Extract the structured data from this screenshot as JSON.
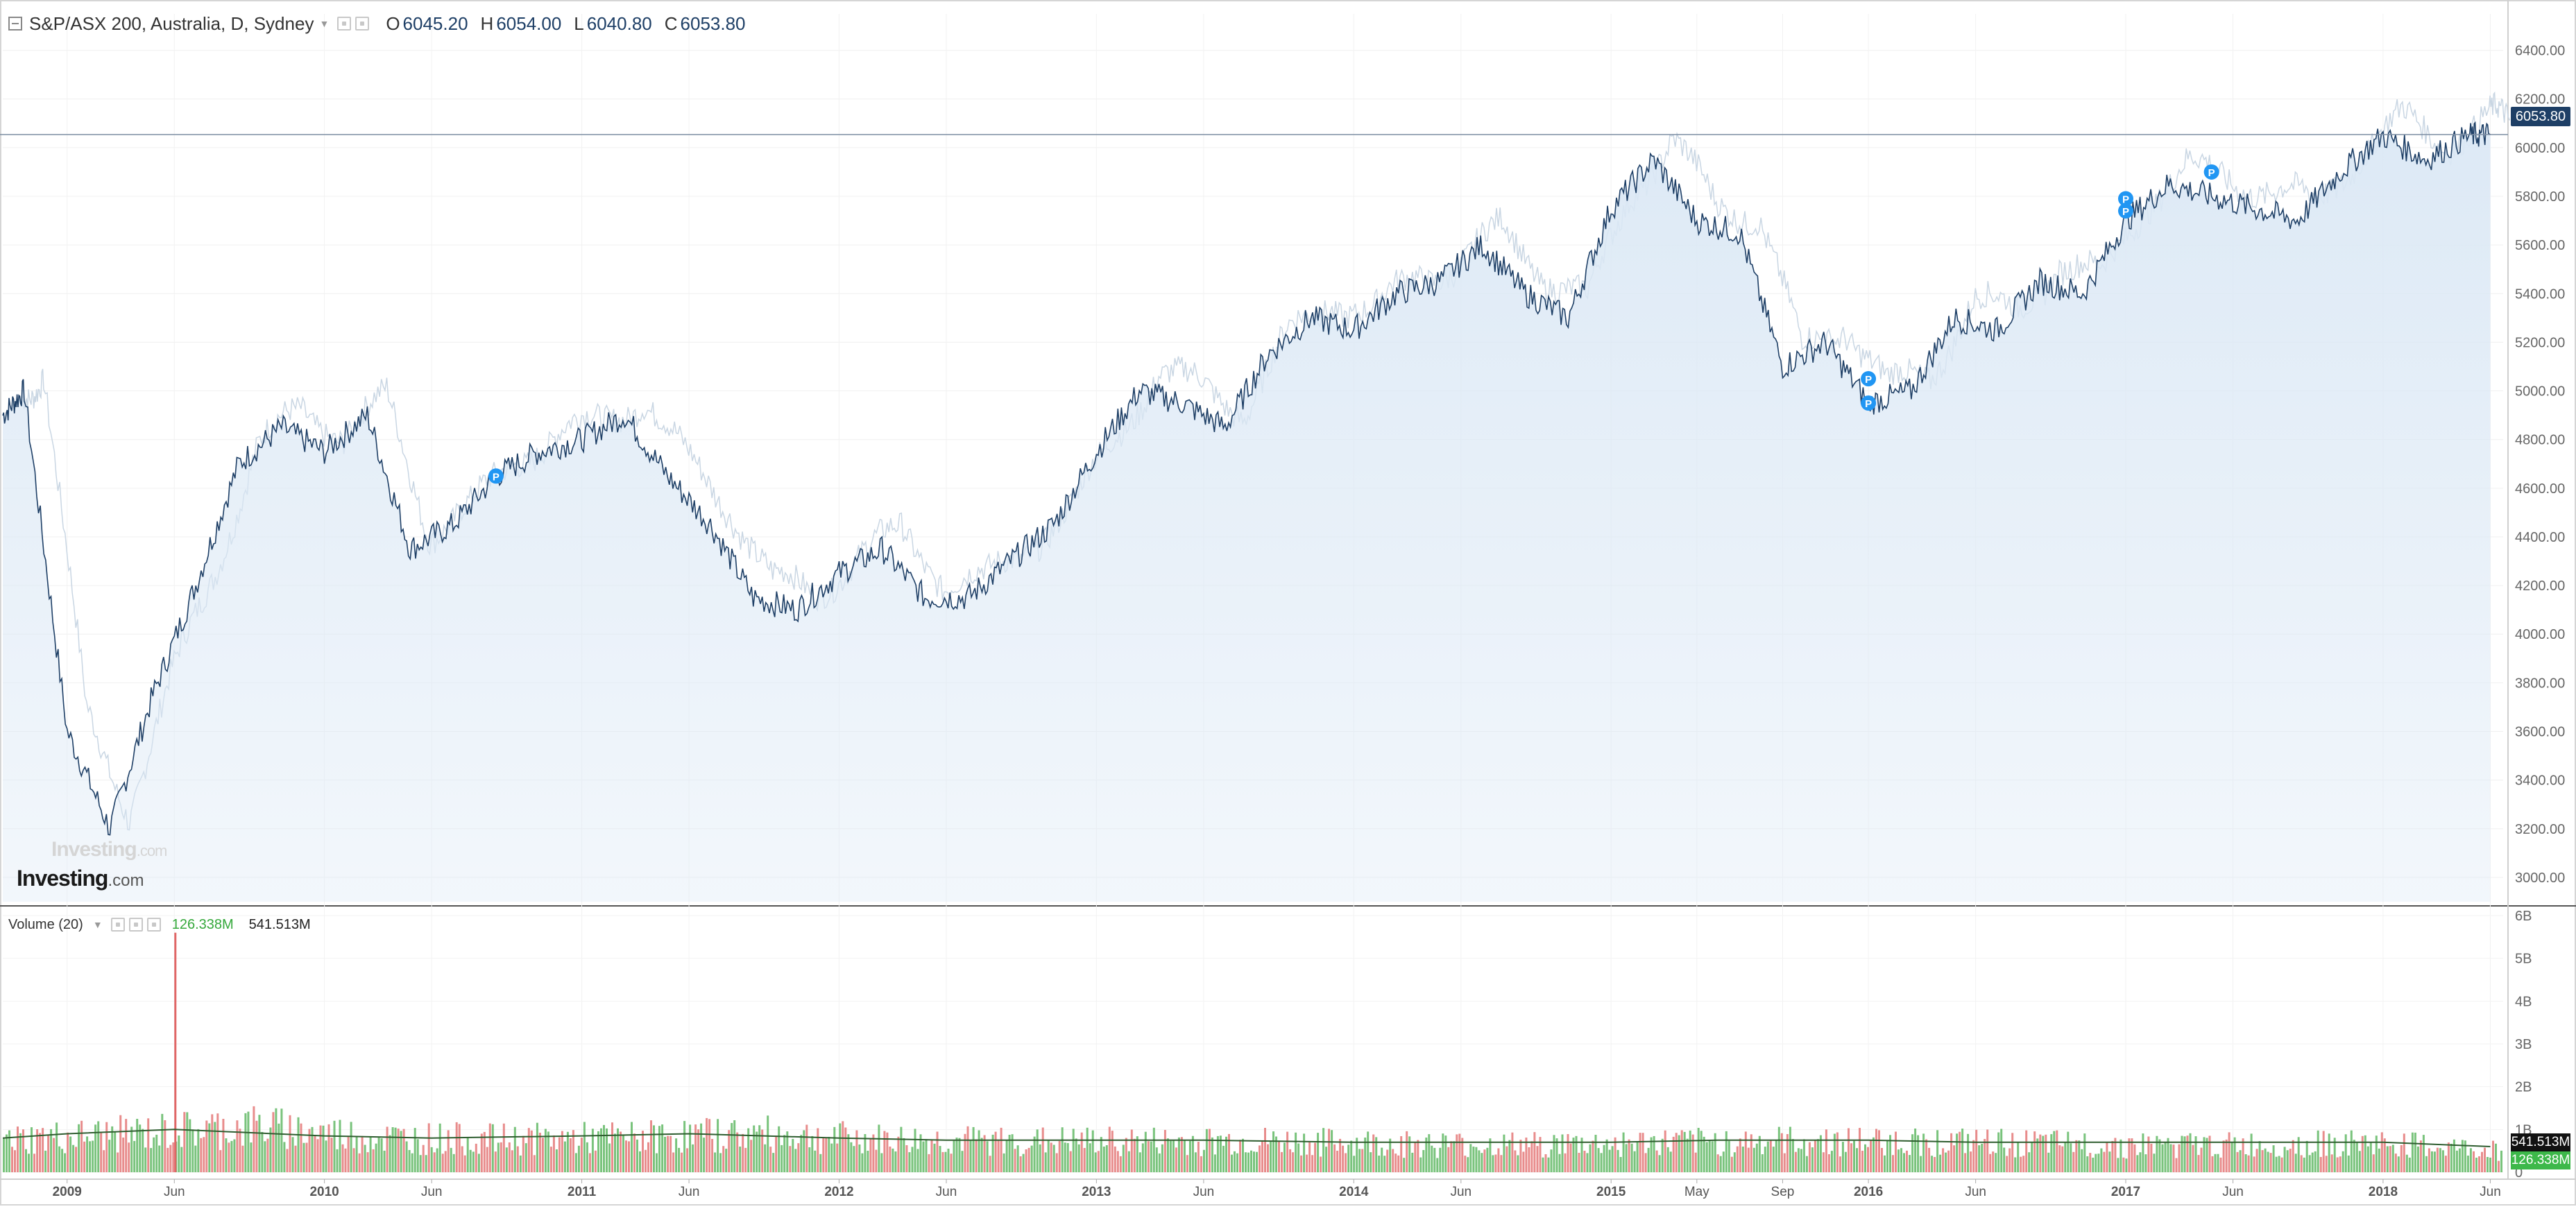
{
  "header": {
    "title": "S&P/ASX 200, Australia, D, Sydney",
    "ohlc": [
      {
        "key": "O",
        "value": "6045.20"
      },
      {
        "key": "H",
        "value": "6054.00"
      },
      {
        "key": "L",
        "value": "6040.80"
      },
      {
        "key": "C",
        "value": "6053.80"
      }
    ]
  },
  "volume_legend": {
    "label": "Volume (20)",
    "value_up": "126.338M",
    "value_total": "541.513M"
  },
  "logo": {
    "main": "Investing",
    "suffix": ".com"
  },
  "last_price_label": "6053.80",
  "volume_tags": {
    "total": "541.513M",
    "up": "126.338M"
  },
  "colors": {
    "price_line": "#1e3f66",
    "area_fill": "#dbe8f5",
    "volume_up": "#4caf50",
    "volume_down": "#e06666",
    "marker": "#2196f3"
  },
  "chart_data": [
    {
      "type": "area",
      "series": [
        {
          "x": [
            "2008-10",
            "2008-11",
            "2009-01",
            "2009-03",
            "2009-05",
            "2009-07",
            "2009-09",
            "2009-11",
            "2010-01",
            "2010-03",
            "2010-05",
            "2010-07",
            "2010-09",
            "2010-11",
            "2011-01",
            "2011-03",
            "2011-05",
            "2011-07",
            "2011-09",
            "2011-11",
            "2012-01",
            "2012-03",
            "2012-05",
            "2012-07",
            "2012-09",
            "2012-11",
            "2013-01",
            "2013-03",
            "2013-05",
            "2013-07",
            "2013-09",
            "2013-11",
            "2014-01",
            "2014-03",
            "2014-05",
            "2014-07",
            "2014-09",
            "2014-11",
            "2015-01",
            "2015-03",
            "2015-05",
            "2015-07",
            "2015-09",
            "2015-11",
            "2016-01",
            "2016-03",
            "2016-05",
            "2016-07",
            "2016-09",
            "2016-11",
            "2017-01",
            "2017-03",
            "2017-05",
            "2017-07",
            "2017-09",
            "2017-11",
            "2018-01",
            "2018-03",
            "2018-05",
            "2018-06"
          ],
          "values": [
            4900,
            5000,
            3600,
            3200,
            3750,
            4200,
            4700,
            4850,
            4750,
            4900,
            4350,
            4450,
            4650,
            4750,
            4800,
            4900,
            4650,
            4450,
            4150,
            4100,
            4250,
            4350,
            4150,
            4150,
            4300,
            4450,
            4750,
            5000,
            4950,
            4850,
            5150,
            5300,
            5250,
            5400,
            5450,
            5600,
            5400,
            5300,
            5750,
            5950,
            5700,
            5650,
            5100,
            5200,
            4950,
            5000,
            5300,
            5250,
            5450,
            5400,
            5700,
            5850,
            5800,
            5750,
            5700,
            5900,
            6050,
            5950,
            6050,
            6053.8
          ]
        }
      ],
      "y_ticks": [
        "6400.00",
        "6200.00",
        "6000.00",
        "5800.00",
        "5600.00",
        "5400.00",
        "5200.00",
        "5000.00",
        "4800.00",
        "4600.00",
        "4400.00",
        "4200.00",
        "4000.00",
        "3800.00",
        "3600.00",
        "3400.00",
        "3200.00",
        "3000.00"
      ],
      "ylim": [
        2900,
        6550
      ],
      "x_ticks": [
        "2009",
        "Jun",
        "2010",
        "Jun",
        "2011",
        "Jun",
        "2012",
        "Jun",
        "2013",
        "Jun",
        "2014",
        "Jun",
        "2015",
        "May",
        "Sep",
        "2016",
        "Jun",
        "2017",
        "Jun",
        "2018",
        "Jun"
      ],
      "x_tick_dates": [
        "2009-01",
        "2009-06",
        "2010-01",
        "2010-06",
        "2011-01",
        "2011-06",
        "2012-01",
        "2012-06",
        "2013-01",
        "2013-06",
        "2014-01",
        "2014-06",
        "2015-01",
        "2015-05",
        "2015-09",
        "2016-01",
        "2016-06",
        "2017-01",
        "2017-06",
        "2018-01",
        "2018-06"
      ],
      "markers": [
        {
          "label": "P",
          "date": "2010-09",
          "value": 4650
        },
        {
          "label": "P",
          "date": "2016-01",
          "value": 5050
        },
        {
          "label": "P",
          "date": "2016-01",
          "value": 4950
        },
        {
          "label": "P",
          "date": "2017-01",
          "value": 5790
        },
        {
          "label": "P",
          "date": "2017-01",
          "value": 5740
        },
        {
          "label": "P",
          "date": "2017-05",
          "value": 5900
        }
      ],
      "last_value": 6053.8,
      "grid": true
    },
    {
      "type": "bar",
      "series": [
        {
          "name": "Volume (20)",
          "x": [
            "2008-10",
            "2009-01",
            "2009-06",
            "2010-01",
            "2010-06",
            "2011-01",
            "2011-06",
            "2012-01",
            "2012-06",
            "2013-01",
            "2013-06",
            "2014-01",
            "2014-06",
            "2015-01",
            "2015-06",
            "2016-01",
            "2016-06",
            "2017-01",
            "2017-06",
            "2018-01",
            "2018-06"
          ],
          "values_billions": [
            0.85,
            1.0,
            1.2,
            0.9,
            0.85,
            0.9,
            1.0,
            0.85,
            0.8,
            0.8,
            0.8,
            0.75,
            0.7,
            0.75,
            0.8,
            0.8,
            0.75,
            0.7,
            0.7,
            0.75,
            0.54
          ]
        },
        {
          "name": "Volume MA",
          "values_billions": [
            0.8,
            0.9,
            1.0,
            0.85,
            0.8,
            0.85,
            0.9,
            0.8,
            0.75,
            0.75,
            0.75,
            0.7,
            0.7,
            0.7,
            0.75,
            0.75,
            0.7,
            0.7,
            0.7,
            0.7,
            0.6
          ]
        }
      ],
      "spike": {
        "date": "2009-06",
        "value_billions": 5.6
      },
      "y_ticks": [
        "6B",
        "5B",
        "4B",
        "3B",
        "2B",
        "1B",
        "0"
      ],
      "ylim": [
        0,
        6
      ]
    }
  ]
}
